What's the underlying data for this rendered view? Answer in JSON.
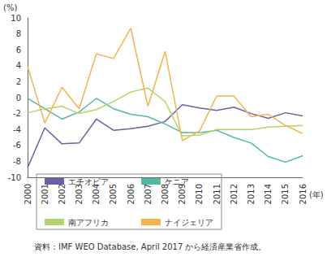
{
  "chart_data": {
    "type": "line",
    "y_label": "(%)",
    "x_label": "(年)",
    "source": "資料：IMF WEO Database, April 2017 から経済産業省作成。",
    "categories": [
      "2000",
      "2001",
      "2002",
      "2003",
      "2004",
      "2005",
      "2006",
      "2007",
      "2008",
      "2009",
      "2010",
      "2011",
      "2012",
      "2013",
      "2014",
      "2015",
      "2016"
    ],
    "series": [
      {
        "name": "エチオピア",
        "color": "#6b5fa5",
        "values": [
          -8.8,
          -3.8,
          -5.8,
          -5.7,
          -2.7,
          -4.1,
          -3.9,
          -3.6,
          -3.0,
          -0.9,
          -1.3,
          -1.6,
          -1.2,
          -2.0,
          -2.6,
          -1.9,
          -2.3
        ]
      },
      {
        "name": "ケニア",
        "color": "#4fb9a6",
        "values": [
          -0.1,
          -1.4,
          -2.7,
          -1.8,
          -0.1,
          -1.4,
          -2.1,
          -2.4,
          -3.3,
          -4.4,
          -4.4,
          -4.1,
          -5.0,
          -5.7,
          -7.4,
          -8.1,
          -7.3
        ]
      },
      {
        "name": "南アフリカ",
        "color": "#b3d36b",
        "values": [
          -1.9,
          -1.4,
          -1.1,
          -2.0,
          -1.5,
          -0.5,
          0.7,
          1.2,
          -0.5,
          -4.8,
          -4.7,
          -4.0,
          -4.0,
          -4.0,
          -3.7,
          -3.6,
          -3.5
        ]
      },
      {
        "name": "ナイジェリア",
        "color": "#f2b44b",
        "values": [
          3.9,
          -3.2,
          1.3,
          -1.4,
          5.5,
          4.9,
          8.7,
          -1.1,
          5.8,
          -5.4,
          -4.2,
          0.2,
          0.2,
          -2.4,
          -2.1,
          -3.5,
          -4.5
        ]
      }
    ],
    "ylim": [
      -10,
      10
    ],
    "yticks": [
      -10,
      -8,
      -6,
      -4,
      -2,
      0,
      2,
      4,
      6,
      8,
      10
    ],
    "grid": false,
    "legend": "bottom"
  }
}
